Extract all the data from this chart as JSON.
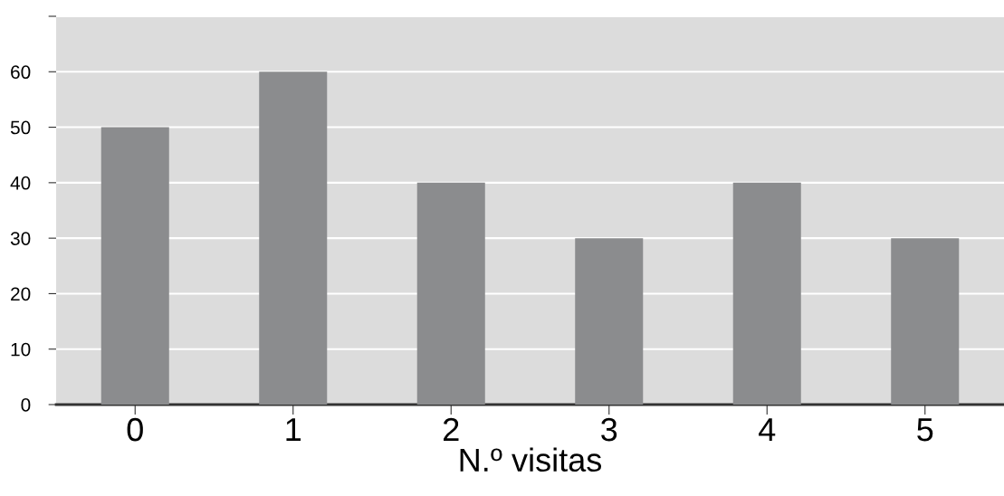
{
  "chart_data": {
    "type": "bar",
    "xlabel": "N.º visitas",
    "categories": [
      "0",
      "1",
      "2",
      "3",
      "4",
      "5"
    ],
    "values": [
      50,
      60,
      40,
      30,
      40,
      30
    ],
    "color": "#8b8c8e",
    "ylim": [
      0,
      70
    ],
    "yticks": [
      0,
      10,
      20,
      30,
      40,
      50,
      60,
      {
        "value": 70,
        "label": null
      }
    ],
    "grid": "y"
  }
}
